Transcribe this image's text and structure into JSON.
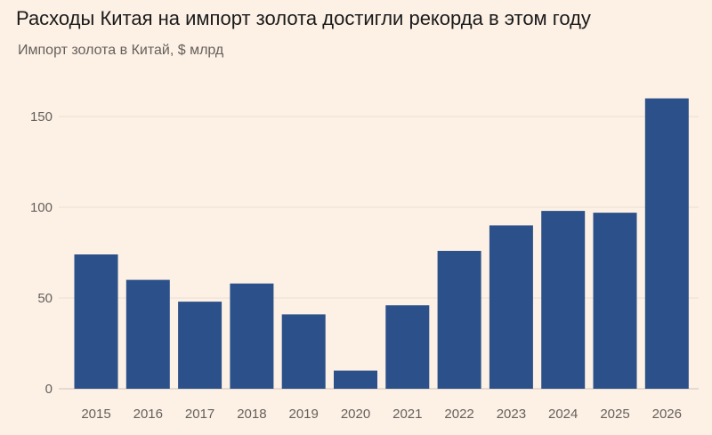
{
  "title": "Расходы Китая на импорт золота достигли рекорда в этом году",
  "subtitle": "Импорт золота в Китай, $ млрд",
  "colors": {
    "bar": "#2c5089",
    "background": "#fdf1e6",
    "grid": "#eadfd4"
  },
  "chart_data": {
    "type": "bar",
    "categories": [
      "2015",
      "2016",
      "2017",
      "2018",
      "2019",
      "2020",
      "2021",
      "2022",
      "2023",
      "2024",
      "2025",
      "2026"
    ],
    "values": [
      74,
      60,
      48,
      58,
      41,
      10,
      46,
      76,
      90,
      98,
      97,
      160
    ],
    "yticks": [
      "0",
      "50",
      "100",
      "150"
    ],
    "ylim": [
      0,
      160
    ],
    "grid": true,
    "legend": "none"
  }
}
